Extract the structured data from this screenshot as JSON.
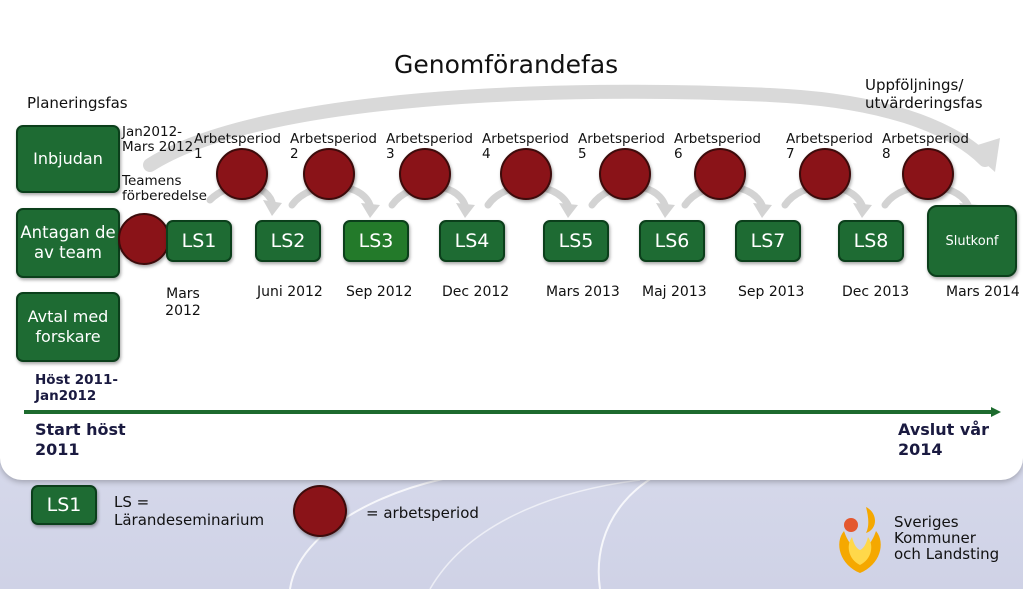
{
  "title": "Genomförandefas",
  "planning_phase": "Planeringsfas",
  "followup_phase": [
    "Uppföljnings/",
    "utvärderingsfas"
  ],
  "left_boxes": [
    "Inbjudan",
    "Antagan de av team",
    "Avtal med forskare"
  ],
  "notes": {
    "jan_mars": [
      "Jan2012-",
      "Mars 2012"
    ],
    "teams": [
      "Teamens",
      "förberedelse"
    ],
    "host": [
      "Höst 2011-",
      "Jan2012"
    ]
  },
  "periods": [
    {
      "label": "Arbetsperiod",
      "num": "1"
    },
    {
      "label": "Arbetsperiod",
      "num": "2"
    },
    {
      "label": "Arbetsperiod",
      "num": "3"
    },
    {
      "label": "Arbetsperiod",
      "num": "4"
    },
    {
      "label": "Arbetsperiod",
      "num": "5"
    },
    {
      "label": "Arbetsperiod",
      "num": "6"
    },
    {
      "label": "Arbetsperiod",
      "num": "7"
    },
    {
      "label": "Arbetsperiod",
      "num": "8"
    }
  ],
  "seminars": [
    "LS1",
    "LS2",
    "LS3",
    "LS4",
    "LS5",
    "LS6",
    "LS7",
    "LS8"
  ],
  "final": "Slutkonf",
  "dates": [
    "Mars 2012",
    "Juni 2012",
    "Sep 2012",
    "Dec 2012",
    "Mars 2013",
    "Maj 2013",
    "Sep 2013",
    "Dec 2013",
    "Mars 2014"
  ],
  "timeline": {
    "start": [
      "Start höst",
      "2011"
    ],
    "end": [
      "Avslut vår",
      "2014"
    ]
  },
  "legend": {
    "ls_box": "LS1",
    "ls_text": [
      "LS =",
      "Lärandeseminarium"
    ],
    "period_text": "= arbetsperiod"
  },
  "logo": [
    "Sveriges",
    "Kommuner",
    "och Landsting"
  ],
  "colors": {
    "green": "#1e6b33",
    "dark_red": "#8a1318",
    "timeline": "#1d6b2e",
    "arrow_gray": "#d9d9d9"
  }
}
